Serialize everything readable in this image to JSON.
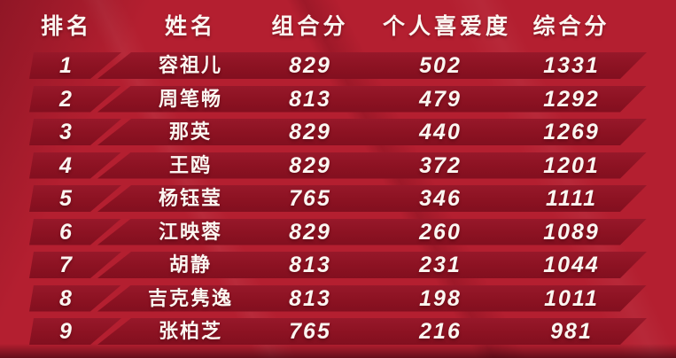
{
  "chart_data": {
    "type": "table",
    "title": "singer-ranking-leaderboard",
    "columns": [
      {
        "key": "rank",
        "label": "排名"
      },
      {
        "key": "name",
        "label": "姓名"
      },
      {
        "key": "combo",
        "label": "组合分"
      },
      {
        "key": "personal",
        "label": "个人喜爱度"
      },
      {
        "key": "total",
        "label": "综合分"
      }
    ],
    "rows": [
      {
        "rank": "1",
        "name": "容祖儿",
        "combo": "829",
        "personal": "502",
        "total": "1331"
      },
      {
        "rank": "2",
        "name": "周笔畅",
        "combo": "813",
        "personal": "479",
        "total": "1292"
      },
      {
        "rank": "3",
        "name": "那英",
        "combo": "829",
        "personal": "440",
        "total": "1269"
      },
      {
        "rank": "4",
        "name": "王鸥",
        "combo": "829",
        "personal": "372",
        "total": "1201"
      },
      {
        "rank": "5",
        "name": "杨钰莹",
        "combo": "765",
        "personal": "346",
        "total": "1111"
      },
      {
        "rank": "6",
        "name": "江映蓉",
        "combo": "829",
        "personal": "260",
        "total": "1089"
      },
      {
        "rank": "7",
        "name": "胡静",
        "combo": "813",
        "personal": "231",
        "total": "1044"
      },
      {
        "rank": "8",
        "name": "吉克隽逸",
        "combo": "813",
        "personal": "198",
        "total": "1011"
      },
      {
        "rank": "9",
        "name": "张柏芝",
        "combo": "765",
        "personal": "216",
        "total": "981"
      }
    ]
  },
  "colors": {
    "background": "#b41f30",
    "row_bar": "#8c1222",
    "row_bar_light": "#97182a",
    "row_bar_dark": "#820f1f",
    "text": "#fbf6f1"
  }
}
